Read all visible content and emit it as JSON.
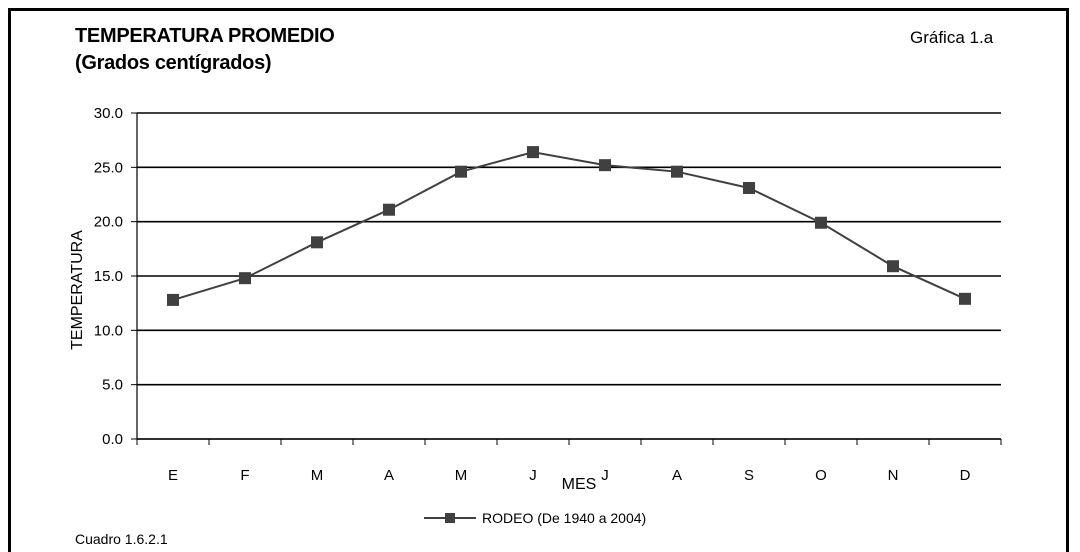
{
  "header": {
    "title_line1": "TEMPERATURA PROMEDIO",
    "title_line2": "(Grados centígrados)",
    "graph_ref": "Gráfica 1.a"
  },
  "footer": {
    "source": "Cuadro 1.6.2.1"
  },
  "chart_data": {
    "type": "line",
    "title": "TEMPERATURA PROMEDIO (Grados centígrados)",
    "xlabel": "MES",
    "ylabel": "TEMPERATURA",
    "categories": [
      "E",
      "F",
      "M",
      "A",
      "M",
      "J",
      "J",
      "A",
      "S",
      "O",
      "N",
      "D"
    ],
    "series": [
      {
        "name": "RODEO (De 1940 a 2004)",
        "color": "#404040",
        "marker": "square",
        "values": [
          12.8,
          14.8,
          18.1,
          21.1,
          24.6,
          26.4,
          25.2,
          24.6,
          23.1,
          19.9,
          15.9,
          12.9
        ]
      }
    ],
    "ylim": [
      0,
      30
    ],
    "yticks": [
      "0.0",
      "5.0",
      "10.0",
      "15.0",
      "20.0",
      "25.0",
      "30.0"
    ],
    "grid": true,
    "legend": "bottom-center"
  }
}
